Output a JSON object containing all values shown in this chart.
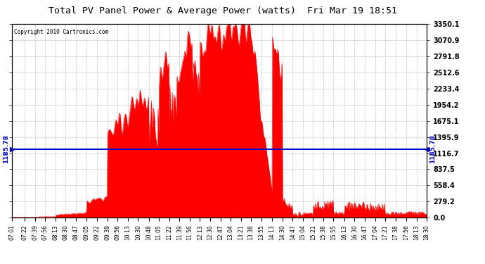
{
  "title": "Total PV Panel Power & Average Power (watts)  Fri Mar 19 18:51",
  "copyright": "Copyright 2010 Cartronics.com",
  "avg_power": 1185.78,
  "y_max": 3350.1,
  "y_ticks": [
    0.0,
    279.2,
    558.4,
    837.5,
    1116.7,
    1395.9,
    1675.1,
    1954.2,
    2233.4,
    2512.6,
    2791.8,
    3070.9,
    3350.1
  ],
  "fill_color": "#ff0000",
  "line_color": "#0000cc",
  "avg_label_color": "#0000cc",
  "background_color": "#ffffff",
  "plot_bg_color": "#ffffff",
  "grid_color": "#aaaaaa",
  "title_color": "#000000",
  "x_tick_labels": [
    "07:01",
    "07:22",
    "07:39",
    "07:56",
    "08:13",
    "08:30",
    "08:47",
    "09:05",
    "09:22",
    "09:39",
    "09:56",
    "10:13",
    "10:30",
    "10:48",
    "11:05",
    "11:22",
    "11:39",
    "11:56",
    "12:13",
    "12:30",
    "12:47",
    "13:04",
    "13:21",
    "13:38",
    "13:55",
    "14:13",
    "14:30",
    "14:47",
    "15:04",
    "15:21",
    "15:38",
    "15:55",
    "16:13",
    "16:30",
    "16:47",
    "17:04",
    "17:21",
    "17:38",
    "17:56",
    "18:13",
    "18:30"
  ]
}
